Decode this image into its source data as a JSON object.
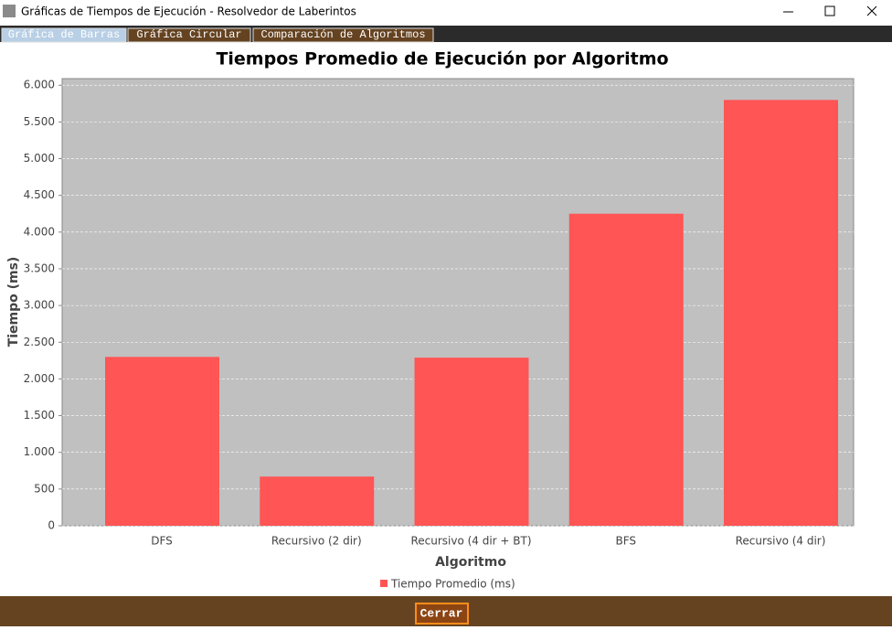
{
  "window": {
    "title": "Gráficas de Tiempos de Ejecución - Resolvedor de Laberintos"
  },
  "tabs": [
    "Gráfica de Barras",
    "Gráfica Circular",
    "Comparación de Algoritmos"
  ],
  "chart_data": {
    "type": "bar",
    "title": "Tiempos Promedio de Ejecución por Algoritmo",
    "x_label": "Algoritmo",
    "y_label": "Tiempo (ms)",
    "categories": [
      "DFS",
      "Recursivo (2 dir)",
      "Recursivo (4 dir + BT)",
      "BFS",
      "Recursivo (4 dir)"
    ],
    "series": [
      {
        "name": "Tiempo Promedio (ms)",
        "color": "#ff5555",
        "values": [
          2300,
          670,
          2290,
          4250,
          5800
        ]
      }
    ],
    "ylim": [
      0,
      6090
    ],
    "yticks": [
      0,
      500,
      {
        "value": 1000,
        "label": "1.000"
      },
      {
        "value": 1500,
        "label": "1.500"
      },
      {
        "value": 2000,
        "label": "2.000"
      },
      {
        "value": 2500,
        "label": "2.500"
      },
      {
        "value": 3000,
        "label": "3.000"
      },
      {
        "value": 3500,
        "label": "3.500"
      },
      {
        "value": 4000,
        "label": "4.000"
      },
      {
        "value": 4500,
        "label": "4.500"
      },
      {
        "value": 5000,
        "label": "5.000"
      },
      {
        "value": 5500,
        "label": "5.500"
      },
      {
        "value": 6000,
        "label": "6.000"
      }
    ],
    "grid": true,
    "legend": "bottom"
  },
  "button": {
    "label": "Cerrar"
  }
}
